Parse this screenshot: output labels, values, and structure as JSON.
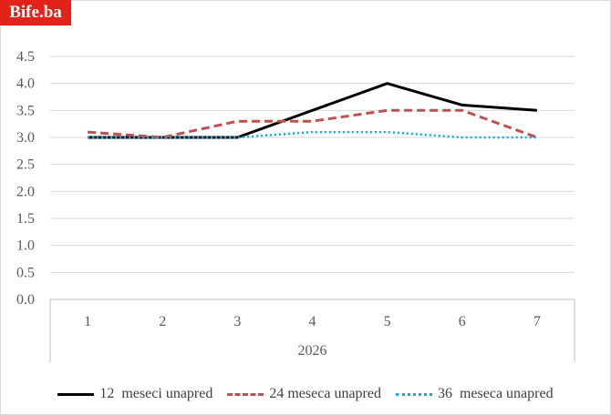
{
  "brand": {
    "text": "Bife.ba"
  },
  "chart_data": {
    "type": "line",
    "title": "",
    "xlabel": "",
    "ylabel": "",
    "categories": [
      "1",
      "2",
      "3",
      "4",
      "5",
      "6",
      "7"
    ],
    "group_label": "2026",
    "ylim": [
      0,
      4.5
    ],
    "yticks": [
      "0.0",
      "0.5",
      "1.0",
      "1.5",
      "2.0",
      "2.5",
      "3.0",
      "3.5",
      "4.0",
      "4.5"
    ],
    "grid": true,
    "legend_position": "bottom",
    "series": [
      {
        "name": "12  meseci unapred",
        "values": [
          3.0,
          3.0,
          3.0,
          3.5,
          4.0,
          3.6,
          3.5
        ],
        "color": "#000000",
        "style": "solid"
      },
      {
        "name": "24 meseca unapred",
        "values": [
          3.1,
          3.0,
          3.3,
          3.3,
          3.5,
          3.5,
          3.0
        ],
        "color": "#c0504d",
        "style": "dashed"
      },
      {
        "name": "36  meseca unapred",
        "values": [
          3.0,
          3.0,
          3.0,
          3.1,
          3.1,
          3.0,
          3.0
        ],
        "color": "#00b0f0",
        "style": "dotted"
      }
    ]
  }
}
